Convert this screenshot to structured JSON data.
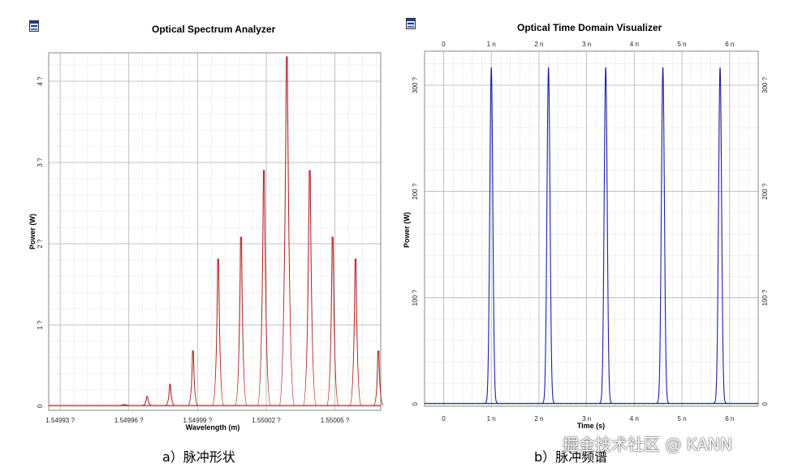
{
  "left": {
    "caption": "a）脉冲形状",
    "chart_data": {
      "type": "line",
      "title": "Optical Spectrum Analyzer",
      "xlabel": "Wavelength (m)",
      "ylabel": "Power (W)",
      "xlim": [
        1.549925,
        1.55007
      ],
      "ylim": [
        -0.05,
        4.35
      ],
      "x_ticks": [
        1.54993,
        1.54996,
        1.54999,
        1.55002,
        1.55005
      ],
      "x_tick_labels": [
        "1.54993 ?",
        "1.54996 ?",
        "1.54999 ?",
        "1.55002 ?",
        "1.55005 ?"
      ],
      "y_ticks": [
        0,
        1,
        2,
        3,
        4
      ],
      "y_tick_labels": [
        "0",
        "1 ?",
        "2 ?",
        "3 ?",
        "4 ?"
      ],
      "grid": true,
      "series": [
        {
          "color": "#b22222",
          "peaks": [
            [
              1.549958,
              0.02
            ],
            [
              1.549968,
              0.12
            ],
            [
              1.549978,
              0.27
            ],
            [
              1.549988,
              0.68
            ],
            [
              1.549999,
              1.81
            ],
            [
              1.550009,
              2.08
            ],
            [
              1.550019,
              2.9
            ],
            [
              1.550029,
              4.3
            ],
            [
              1.550039,
              2.9
            ],
            [
              1.550049,
              2.08
            ],
            [
              1.550059,
              1.81
            ],
            [
              1.550069,
              0.68
            ]
          ]
        }
      ]
    }
  },
  "right": {
    "caption": "b）脉冲频谱",
    "chart_data": {
      "type": "line",
      "title": "Optical Time Domain Visualizer",
      "xlabel": "Time (s)",
      "ylabel": "Power (W)",
      "xlim": [
        -0.4,
        6.6
      ],
      "ylim": [
        -2,
        332
      ],
      "x_ticks": [
        0,
        1,
        2,
        3,
        4,
        5,
        6
      ],
      "x_tick_labels": [
        "0",
        "1 n",
        "2 n",
        "3 n",
        "4 n",
        "5 n",
        "6 n"
      ],
      "y_ticks": [
        0,
        100,
        200,
        300
      ],
      "y_tick_labels": [
        "0",
        "100 ?",
        "200 ?",
        "300 ?"
      ],
      "grid": true,
      "series": [
        {
          "color": "#1f1fa8",
          "pulses": [
            [
              1.0,
              316
            ],
            [
              2.2,
              316
            ],
            [
              3.4,
              316
            ],
            [
              4.6,
              316
            ],
            [
              5.8,
              316
            ]
          ]
        }
      ]
    }
  },
  "watermark": "掘金技术社区 @ KANN"
}
